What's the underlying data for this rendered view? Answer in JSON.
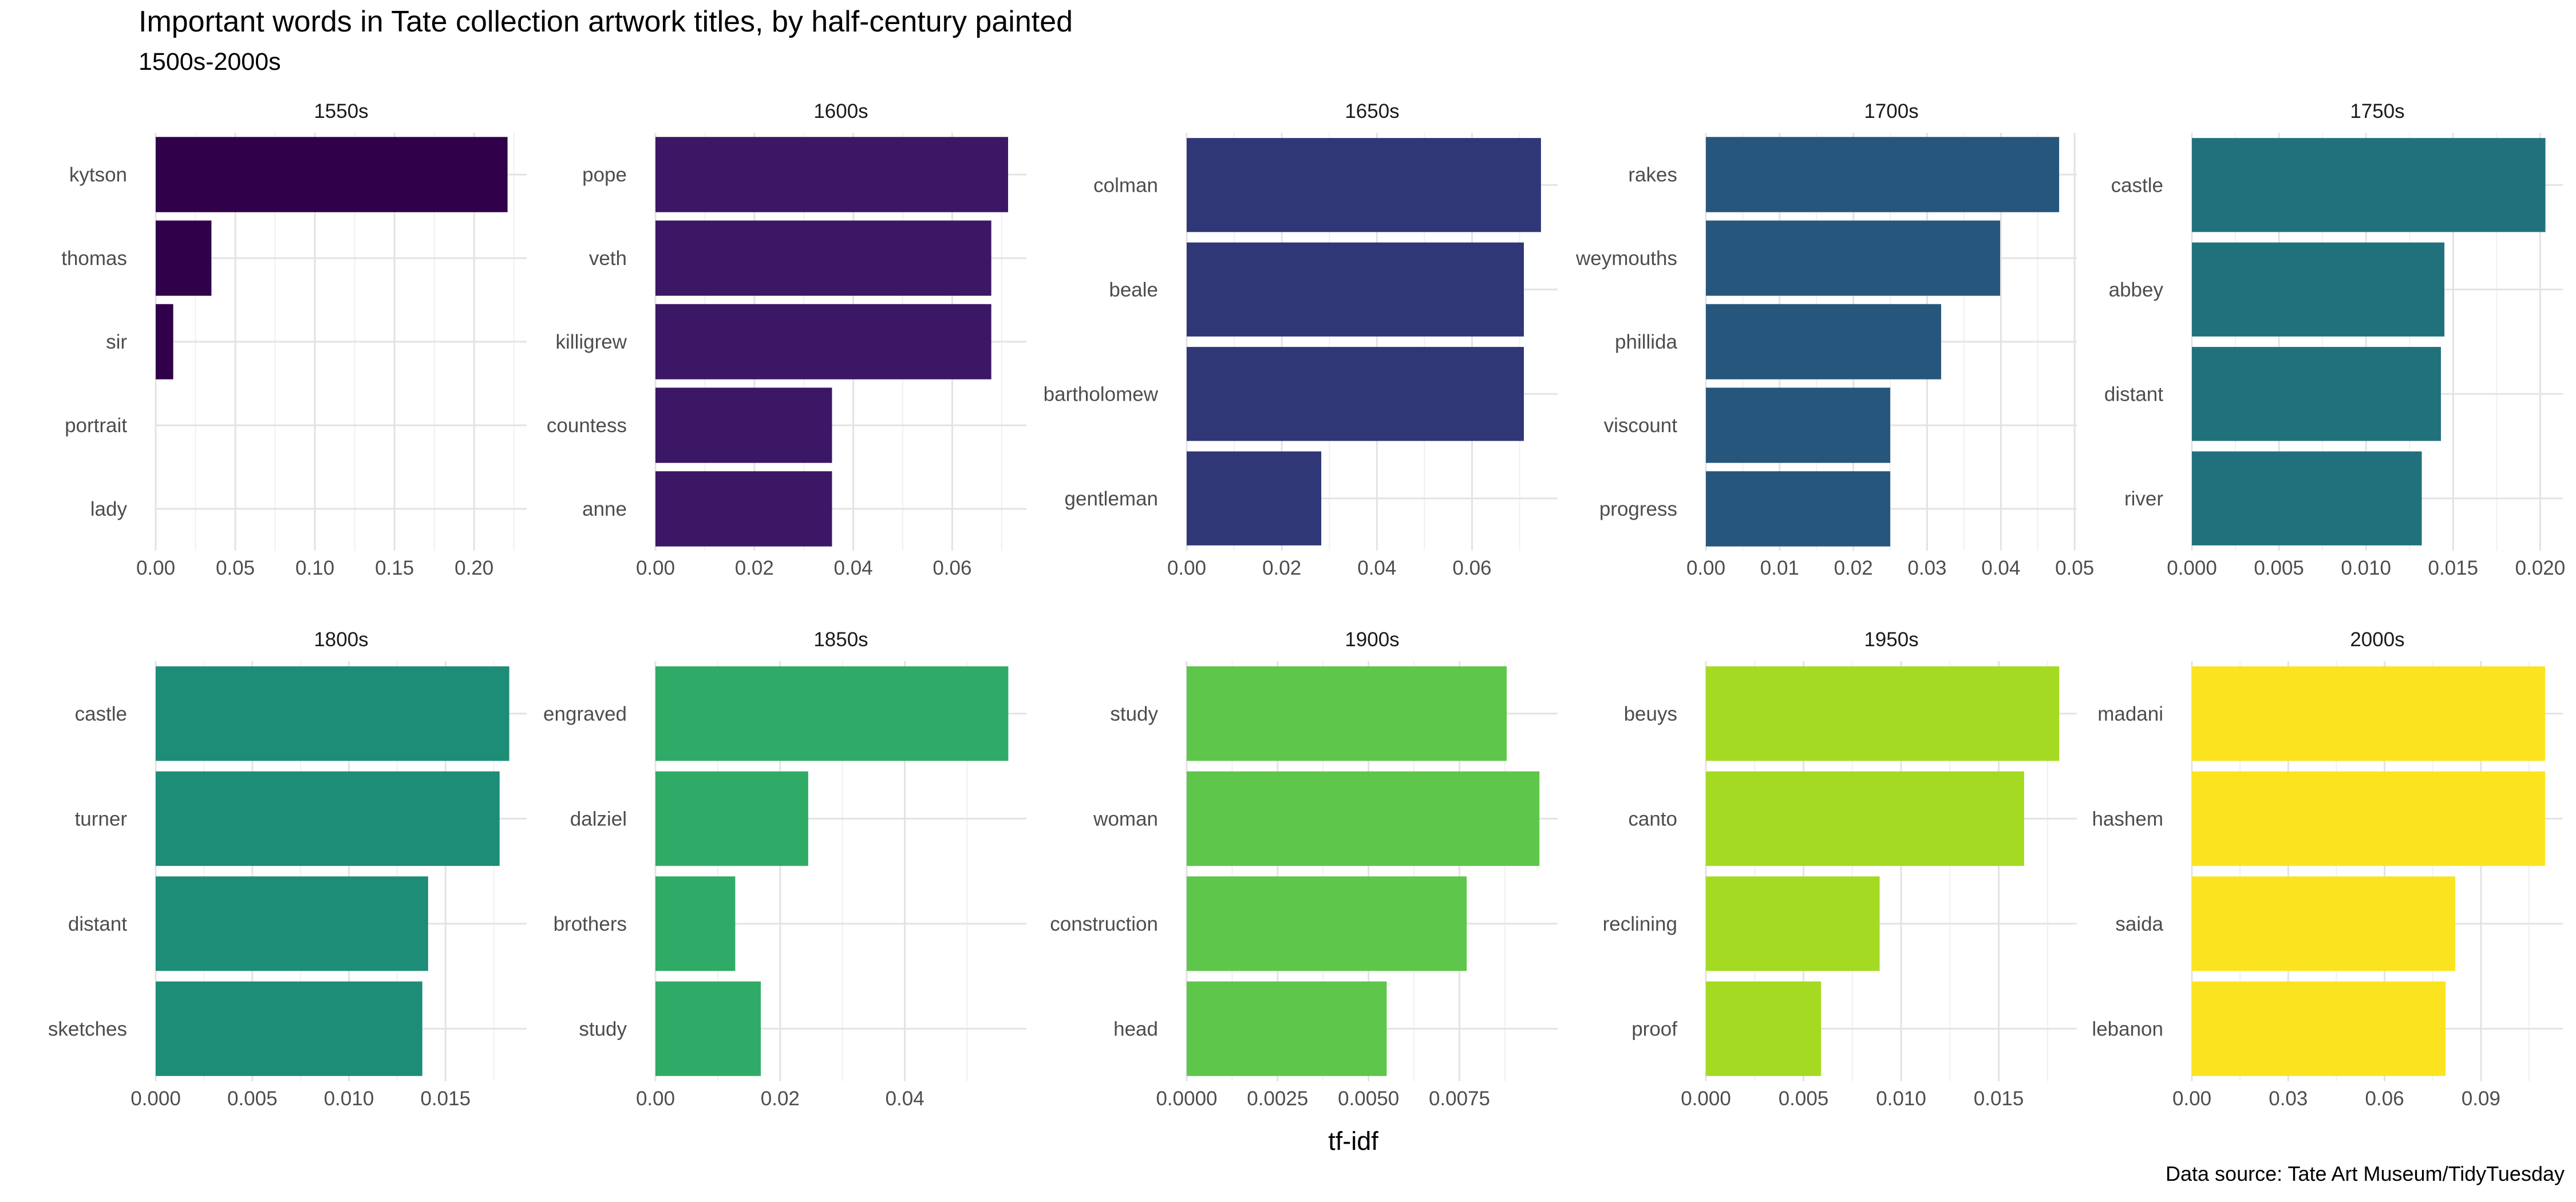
{
  "title": "Important words in Tate collection artwork titles, by half-century painted",
  "subtitle": "1500s-2000s",
  "caption": "Data source: Tate Art Museum/TidyTuesday",
  "chart_data": {
    "type": "bar",
    "orientation": "horizontal",
    "xlabel": "tf-idf",
    "grid": true,
    "legend": "none",
    "panels": [
      {
        "name": "1550s",
        "color": "#30004a",
        "categories": [
          "kytson",
          "thomas",
          "sir",
          "portrait",
          "lady"
        ],
        "values": [
          0.221,
          0.035,
          0.011,
          0.0,
          0.0
        ],
        "xlim": [
          0,
          0.233
        ],
        "ticks": [
          0,
          0.05,
          0.1,
          0.15,
          0.2
        ],
        "tick_labels": [
          "0.00",
          "0.05",
          "0.10",
          "0.15",
          "0.20"
        ]
      },
      {
        "name": "1600s",
        "color": "#3b1766",
        "categories": [
          "pope",
          "veth",
          "killigrew",
          "countess",
          "anne"
        ],
        "values": [
          0.0713,
          0.0679,
          0.0679,
          0.0357,
          0.0357
        ],
        "xlim": [
          0,
          0.075
        ],
        "ticks": [
          0,
          0.02,
          0.04,
          0.06
        ],
        "tick_labels": [
          "0.00",
          "0.02",
          "0.04",
          "0.06"
        ]
      },
      {
        "name": "1650s",
        "color": "#2f3776",
        "categories": [
          "colman",
          "beale",
          "bartholomew",
          "gentleman"
        ],
        "values": [
          0.0745,
          0.0709,
          0.0709,
          0.0283
        ],
        "xlim": [
          0,
          0.078
        ],
        "ticks": [
          0,
          0.02,
          0.04,
          0.06
        ],
        "tick_labels": [
          "0.00",
          "0.02",
          "0.04",
          "0.06"
        ]
      },
      {
        "name": "1700s",
        "color": "#27567d",
        "categories": [
          "rakes",
          "weymouths",
          "phillida",
          "viscount",
          "progress"
        ],
        "values": [
          0.0479,
          0.0399,
          0.0319,
          0.025,
          0.025
        ],
        "xlim": [
          0,
          0.0503
        ],
        "ticks": [
          0,
          0.01,
          0.02,
          0.03,
          0.04,
          0.05
        ],
        "tick_labels": [
          "0.00",
          "0.01",
          "0.02",
          "0.03",
          "0.04",
          "0.05"
        ]
      },
      {
        "name": "1750s",
        "color": "#21717d",
        "categories": [
          "castle",
          "abbey",
          "distant",
          "river"
        ],
        "values": [
          0.0203,
          0.0145,
          0.0143,
          0.0132
        ],
        "xlim": [
          0,
          0.0213
        ],
        "ticks": [
          0,
          0.005,
          0.01,
          0.015,
          0.02
        ],
        "tick_labels": [
          "0.000",
          "0.005",
          "0.010",
          "0.015",
          "0.020"
        ]
      },
      {
        "name": "1800s",
        "color": "#1e8d78",
        "categories": [
          "castle",
          "turner",
          "distant",
          "sketches"
        ],
        "values": [
          0.0183,
          0.0178,
          0.0141,
          0.0138
        ],
        "xlim": [
          0,
          0.0192
        ],
        "ticks": [
          0,
          0.005,
          0.01,
          0.015
        ],
        "tick_labels": [
          "0.000",
          "0.005",
          "0.010",
          "0.015"
        ]
      },
      {
        "name": "1850s",
        "color": "#30ab67",
        "categories": [
          "engraved",
          "dalziel",
          "brothers",
          "study"
        ],
        "values": [
          0.0566,
          0.0245,
          0.0128,
          0.0169
        ],
        "xlim": [
          0,
          0.0595
        ],
        "ticks": [
          0,
          0.02,
          0.04
        ],
        "tick_labels": [
          "0.00",
          "0.02",
          "0.04"
        ]
      },
      {
        "name": "1900s",
        "color": "#5ec64a",
        "categories": [
          "study",
          "woman",
          "construction",
          "head"
        ],
        "values": [
          0.0088,
          0.0097,
          0.0077,
          0.0055
        ],
        "xlim": [
          0,
          0.0102
        ],
        "ticks": [
          0,
          0.0025,
          0.005,
          0.0075
        ],
        "tick_labels": [
          "0.0000",
          "0.0025",
          "0.0050",
          "0.0075"
        ]
      },
      {
        "name": "1950s",
        "color": "#a4da22",
        "categories": [
          "beuys",
          "canto",
          "reclining",
          "proof"
        ],
        "values": [
          0.0181,
          0.0163,
          0.0089,
          0.0059
        ],
        "xlim": [
          0,
          0.019
        ],
        "ticks": [
          0,
          0.005,
          0.01,
          0.015
        ],
        "tick_labels": [
          "0.000",
          "0.005",
          "0.010",
          "0.015"
        ]
      },
      {
        "name": "2000s",
        "color": "#fbe41f",
        "categories": [
          "madani",
          "hashem",
          "saida",
          "lebanon"
        ],
        "values": [
          0.11,
          0.11,
          0.082,
          0.079
        ],
        "xlim": [
          0,
          0.1155
        ],
        "ticks": [
          0,
          0.03,
          0.06,
          0.09
        ],
        "tick_labels": [
          "0.00",
          "0.03",
          "0.06",
          "0.09"
        ]
      }
    ]
  }
}
